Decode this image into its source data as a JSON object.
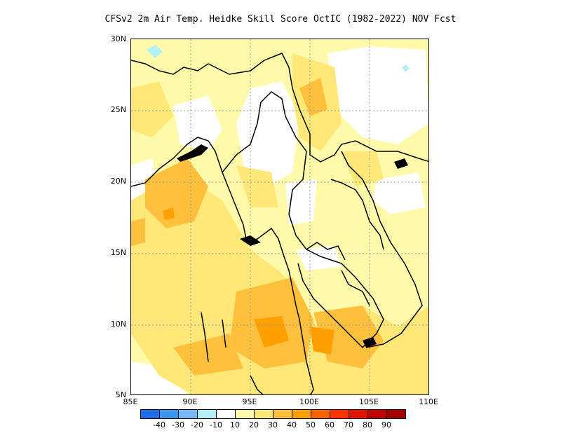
{
  "title": "CFSv2  2m Air Temp. Heidke Skill Score OctIC (1982-2022) NOV Fcst",
  "map": {
    "lon_range": [
      85,
      110
    ],
    "lat_range": [
      5,
      30
    ],
    "y_ticks": [
      "30N",
      "25N",
      "20N",
      "15N",
      "10N",
      "5N"
    ],
    "x_ticks": [
      "85E",
      "90E",
      "95E",
      "100E",
      "105E",
      "110E"
    ]
  },
  "colorbar": {
    "labels": [
      "-40",
      "-30",
      "-20",
      "-10",
      "10",
      "20",
      "30",
      "40",
      "50",
      "60",
      "70",
      "80",
      "90"
    ],
    "colors": [
      "#1e6ee6",
      "#3c96f0",
      "#78b9fa",
      "#b4f0fa",
      "#ffffff",
      "#fffaaa",
      "#ffe878",
      "#ffc03c",
      "#ffa000",
      "#ff6000",
      "#ff3200",
      "#e11400",
      "#c00000",
      "#a50000"
    ]
  }
}
